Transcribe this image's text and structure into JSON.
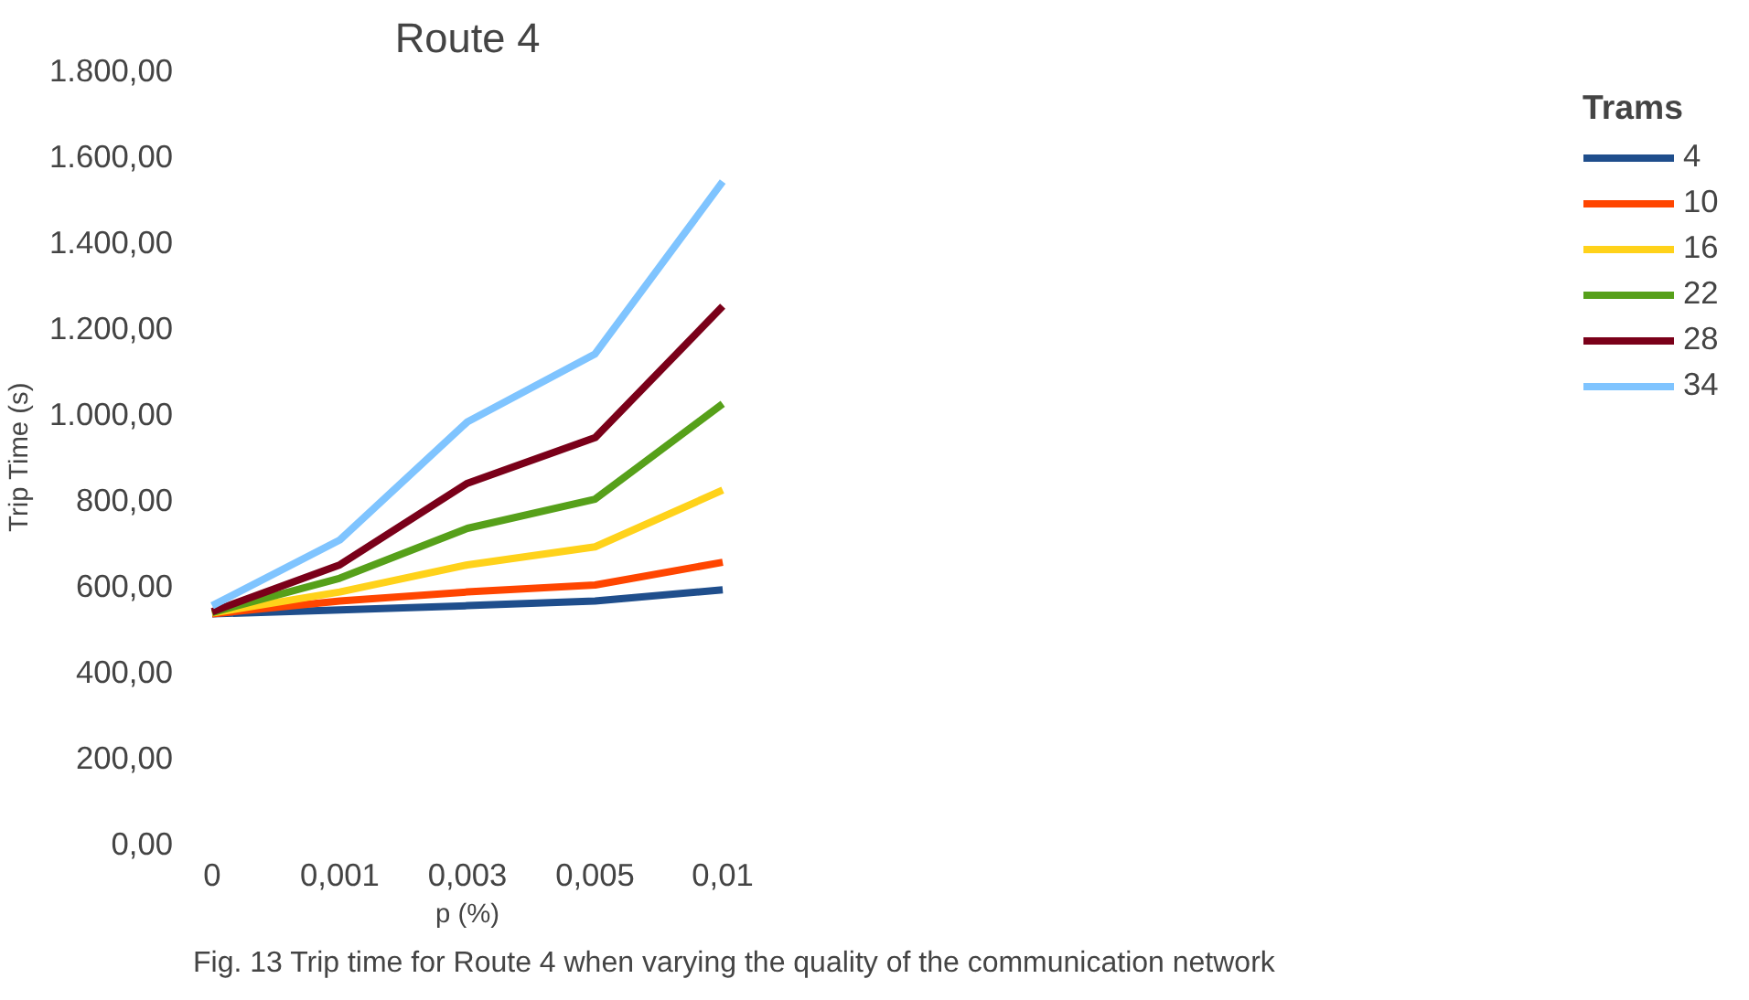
{
  "chart_data": {
    "type": "line",
    "title": "Route 4",
    "xlabel": "p (%)",
    "ylabel": "Trip Time (s)",
    "legend_title": "Trams",
    "legend": "right",
    "grid": false,
    "categories": [
      "0",
      "0,001",
      "0,003",
      "0,005",
      "0,01"
    ],
    "ylim": [
      0,
      1800
    ],
    "yticks": [
      {
        "value": 0,
        "label": "0,00"
      },
      {
        "value": 200,
        "label": "200,00"
      },
      {
        "value": 400,
        "label": "400,00"
      },
      {
        "value": 600,
        "label": "600,00"
      },
      {
        "value": 800,
        "label": "800,00"
      },
      {
        "value": 1000,
        "label": "1.000,00"
      },
      {
        "value": 1200,
        "label": "1.200,00"
      },
      {
        "value": 1400,
        "label": "1.400,00"
      },
      {
        "value": 1600,
        "label": "1.600,00"
      },
      {
        "value": 1800,
        "label": "1.800,00"
      }
    ],
    "series": [
      {
        "name": "4",
        "color": "#1f4e8c",
        "values": [
          535,
          544,
          554,
          565,
          591
        ]
      },
      {
        "name": "10",
        "color": "#ff4500",
        "values": [
          535,
          565,
          586,
          602,
          655
        ]
      },
      {
        "name": "16",
        "color": "#ffd21a",
        "values": [
          537,
          586,
          649,
          691,
          823
        ]
      },
      {
        "name": "22",
        "color": "#56a01a",
        "values": [
          538,
          618,
          734,
          802,
          1024
        ]
      },
      {
        "name": "28",
        "color": "#7a0019",
        "values": [
          540,
          649,
          839,
          945,
          1251
        ]
      },
      {
        "name": "34",
        "color": "#7fc4ff",
        "values": [
          554,
          707,
          982,
          1140,
          1541
        ]
      }
    ],
    "annotations": [
      "Fig. 13  Trip time for Route 4 when varying the quality of the communication network"
    ]
  }
}
